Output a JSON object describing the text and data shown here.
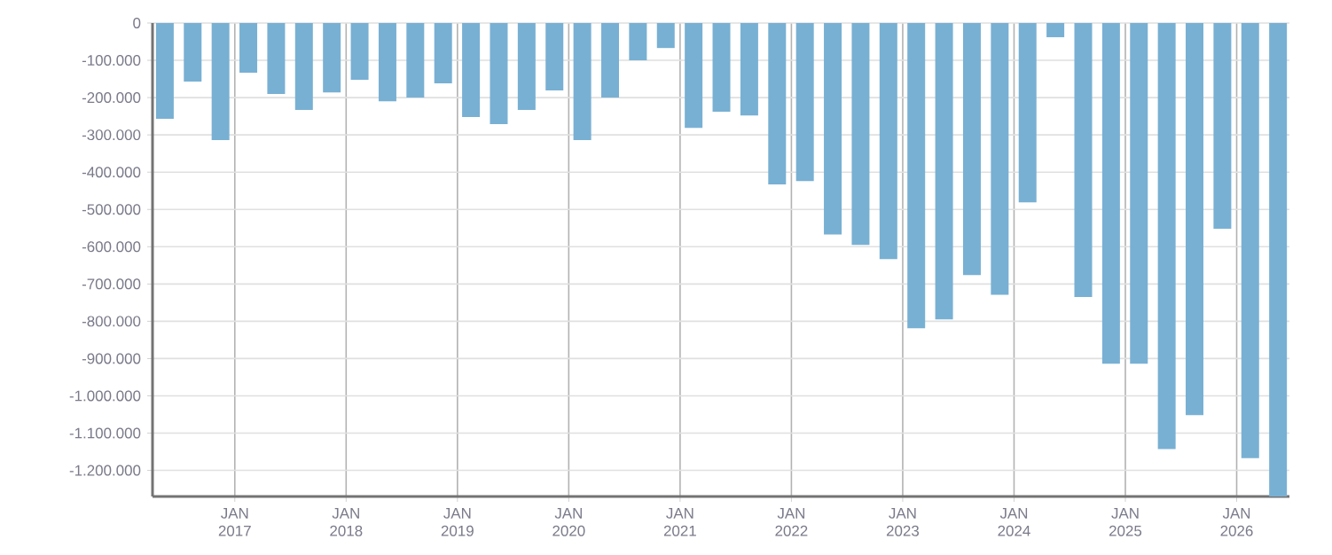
{
  "chart_data": {
    "type": "bar",
    "x": [
      "2016-05-15",
      "2016-08-15",
      "2016-11-15",
      "2017-02-15",
      "2017-05-15",
      "2017-08-15",
      "2017-11-15",
      "2018-02-15",
      "2018-05-15",
      "2018-08-15",
      "2018-11-15",
      "2019-02-15",
      "2019-05-15",
      "2019-08-15",
      "2019-11-15",
      "2020-02-15",
      "2020-05-15",
      "2020-08-15",
      "2020-11-15",
      "2021-02-15",
      "2021-05-15",
      "2021-08-15",
      "2021-11-15",
      "2022-02-15",
      "2022-05-15",
      "2022-08-15",
      "2022-11-15",
      "2023-02-15",
      "2023-05-15",
      "2023-08-15",
      "2023-11-15",
      "2024-02-15",
      "2024-05-15",
      "2024-08-15",
      "2024-11-15",
      "2025-02-15",
      "2025-05-15",
      "2025-08-15",
      "2025-11-15",
      "2026-02-15",
      "2026-05-15"
    ],
    "values": [
      -257000,
      -157000,
      -314000,
      -133000,
      -190000,
      -233000,
      -186000,
      -152000,
      -210000,
      -200000,
      -162000,
      -252000,
      -271000,
      -233000,
      -181000,
      -314000,
      -200000,
      -100000,
      -67000,
      -281000,
      -238000,
      -248000,
      -433000,
      -424000,
      -567000,
      -595000,
      -633000,
      -819000,
      -795000,
      -676000,
      -729000,
      -481000,
      -38000,
      -735000,
      -914000,
      -914000,
      -1143000,
      -1052000,
      -552000,
      -1167000,
      -1270000
    ],
    "color": "#78b0d3",
    "xlim": [
      "2016-04-05",
      "2026-06-22"
    ],
    "ylim": [
      -1270000,
      0
    ],
    "xticks": [
      {
        "value": "2017-01-01",
        "label": "JAN 2017"
      },
      {
        "value": "2018-01-01",
        "label": "JAN 2018"
      },
      {
        "value": "2019-01-01",
        "label": "JAN 2019"
      },
      {
        "value": "2020-01-01",
        "label": "JAN 2020"
      },
      {
        "value": "2021-01-01",
        "label": "JAN 2021"
      },
      {
        "value": "2022-01-01",
        "label": "JAN 2022"
      },
      {
        "value": "2023-01-01",
        "label": "JAN 2023"
      },
      {
        "value": "2024-01-01",
        "label": "JAN 2024"
      },
      {
        "value": "2025-01-01",
        "label": "JAN 2025"
      },
      {
        "value": "2026-01-01",
        "label": "JAN 2026"
      }
    ],
    "yticks": [
      {
        "value": 0,
        "label": "0"
      },
      {
        "value": -100000,
        "label": "-100.000"
      },
      {
        "value": -200000,
        "label": "-200.000"
      },
      {
        "value": -300000,
        "label": "-300.000"
      },
      {
        "value": -400000,
        "label": "-400.000"
      },
      {
        "value": -500000,
        "label": "-500.000"
      },
      {
        "value": -600000,
        "label": "-600.000"
      },
      {
        "value": -700000,
        "label": "-700.000"
      },
      {
        "value": -800000,
        "label": "-800.000"
      },
      {
        "value": -900000,
        "label": "-900.000"
      },
      {
        "value": -1000000,
        "label": "-1.000.000"
      },
      {
        "value": -1100000,
        "label": "-1.100.000"
      },
      {
        "value": -1200000,
        "label": "-1.200.000"
      }
    ],
    "grid": true
  }
}
